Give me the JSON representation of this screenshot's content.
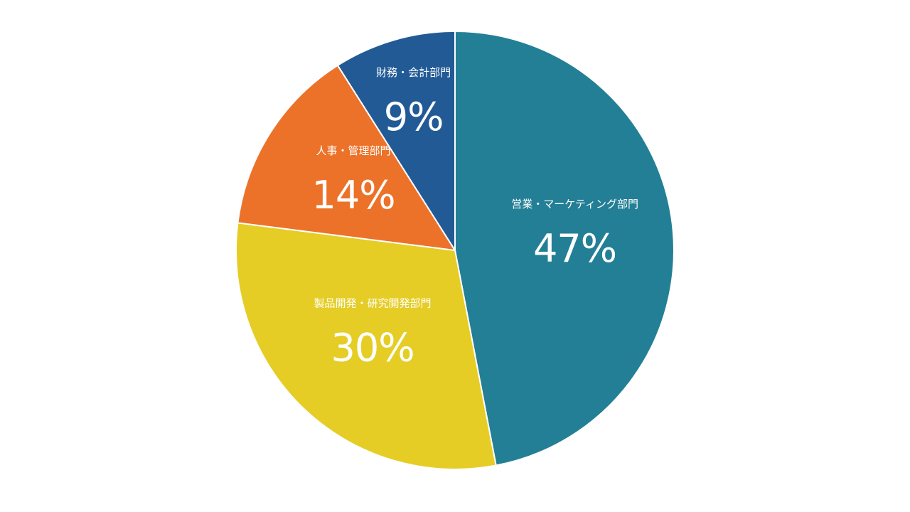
{
  "chart_data": {
    "type": "pie",
    "start_angle_deg": 0,
    "direction": "clockwise",
    "slices": [
      {
        "label": "営業・マーケティング部門",
        "value": 47,
        "display": "47%",
        "color": "#237f95"
      },
      {
        "label": "製品開発・研究開発部門",
        "value": 30,
        "display": "30%",
        "color": "#e5cd26"
      },
      {
        "label": "人事・管理部門",
        "value": 14,
        "display": "14%",
        "color": "#ec7229"
      },
      {
        "label": "財務・会計部門",
        "value": 9,
        "display": "9%",
        "color": "#225a96"
      }
    ]
  }
}
